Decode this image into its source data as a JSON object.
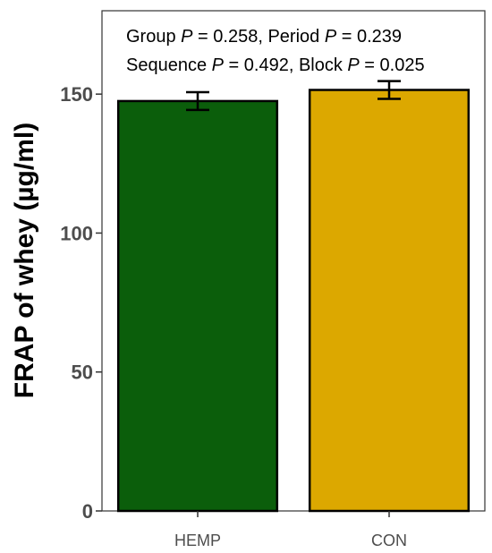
{
  "chart_data": {
    "type": "bar",
    "categories": [
      "HEMP",
      "CON"
    ],
    "values": [
      147.5,
      151.5
    ],
    "errors": [
      3.2,
      3.2
    ],
    "colors": [
      "#0b5e0b",
      "#dca800"
    ],
    "ylabel": "FRAP of whey (µg/ml)",
    "xlabel": "",
    "ylim": [
      0,
      180
    ],
    "yticks": [
      0,
      50,
      100,
      150
    ],
    "grid": false,
    "annotations": [
      [
        {
          "text": "Group ",
          "italic": false
        },
        {
          "text": "P",
          "italic": true
        },
        {
          "text": " = 0.258, Period ",
          "italic": false
        },
        {
          "text": "P",
          "italic": true
        },
        {
          "text": " = 0.239",
          "italic": false
        }
      ],
      [
        {
          "text": "Sequence ",
          "italic": false
        },
        {
          "text": "P",
          "italic": true
        },
        {
          "text": " = 0.492, Block ",
          "italic": false
        },
        {
          "text": "P",
          "italic": true
        },
        {
          "text": " = 0.025",
          "italic": false
        }
      ]
    ]
  }
}
